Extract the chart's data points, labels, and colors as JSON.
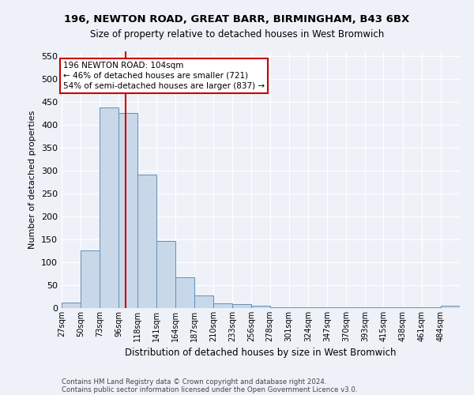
{
  "title1": "196, NEWTON ROAD, GREAT BARR, BIRMINGHAM, B43 6BX",
  "title2": "Size of property relative to detached houses in West Bromwich",
  "xlabel": "Distribution of detached houses by size in West Bromwich",
  "ylabel": "Number of detached properties",
  "footnote1": "Contains HM Land Registry data © Crown copyright and database right 2024.",
  "footnote2": "Contains public sector information licensed under the Open Government Licence v3.0.",
  "annotation_line1": "196 NEWTON ROAD: 104sqm",
  "annotation_line2": "← 46% of detached houses are smaller (721)",
  "annotation_line3": "54% of semi-detached houses are larger (837) →",
  "bar_color": "#c8d8e8",
  "bar_edge_color": "#6090b8",
  "vline_color": "#cc0000",
  "vline_x": 104,
  "categories": [
    "27sqm",
    "50sqm",
    "73sqm",
    "96sqm",
    "118sqm",
    "141sqm",
    "164sqm",
    "187sqm",
    "210sqm",
    "233sqm",
    "256sqm",
    "278sqm",
    "301sqm",
    "324sqm",
    "347sqm",
    "370sqm",
    "393sqm",
    "415sqm",
    "438sqm",
    "461sqm",
    "484sqm"
  ],
  "bin_edges": [
    27,
    50,
    73,
    96,
    118,
    141,
    164,
    187,
    210,
    233,
    256,
    278,
    301,
    324,
    347,
    370,
    393,
    415,
    438,
    461,
    484,
    507
  ],
  "values": [
    12,
    126,
    438,
    425,
    291,
    147,
    68,
    27,
    11,
    8,
    5,
    2,
    1,
    2,
    1,
    1,
    1,
    1,
    1,
    1,
    6
  ],
  "ylim": [
    0,
    560
  ],
  "yticks": [
    0,
    50,
    100,
    150,
    200,
    250,
    300,
    350,
    400,
    450,
    500,
    550
  ],
  "background_color": "#eef2f8",
  "grid_color": "#ffffff"
}
